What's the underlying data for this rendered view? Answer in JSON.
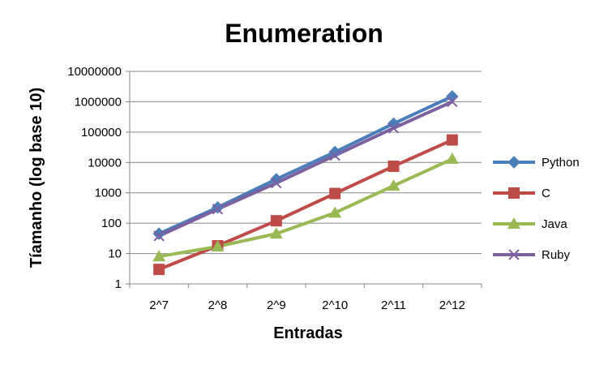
{
  "chart_data": {
    "type": "line",
    "title": "Enumeration",
    "xlabel": "Entradas",
    "ylabel": "Tíamanho (log base 10)",
    "yscale": "log10",
    "ylim": [
      1,
      10000000
    ],
    "yticks": [
      "1",
      "10",
      "100",
      "1000",
      "10000",
      "100000",
      "1000000",
      "10000000"
    ],
    "categories": [
      "2^7",
      "2^8",
      "2^9",
      "2^10",
      "2^11",
      "2^12"
    ],
    "grid": true,
    "legend_position": "right",
    "series": [
      {
        "name": "Python",
        "color": "#4A7EBB",
        "marker": "diamond",
        "values": [
          45,
          330,
          2800,
          22000,
          190000,
          1500000
        ]
      },
      {
        "name": "C",
        "color": "#BE4B48",
        "marker": "square",
        "values": [
          3,
          18,
          120,
          950,
          7500,
          55000
        ]
      },
      {
        "name": "Java",
        "color": "#98B954",
        "marker": "triangle",
        "values": [
          8,
          17,
          45,
          220,
          1700,
          13000
        ]
      },
      {
        "name": "Ruby",
        "color": "#7D60A0",
        "marker": "x",
        "values": [
          38,
          290,
          2100,
          17000,
          135000,
          1000000
        ]
      }
    ]
  }
}
